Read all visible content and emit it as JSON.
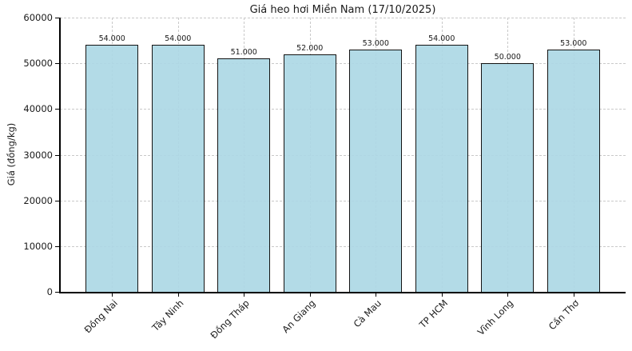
{
  "chart_data": {
    "type": "bar",
    "title": "Giá heo hơi Miền Nam (17/10/2025)",
    "xlabel": "",
    "ylabel": "Giá (đồng/kg)",
    "categories": [
      "Đồng Nai",
      "Tây Ninh",
      "Đồng Tháp",
      "An Giang",
      "Cà Mau",
      "TP HCM",
      "Vĩnh Long",
      "Cần Thơ"
    ],
    "values": [
      54000,
      54000,
      51000,
      52000,
      53000,
      54000,
      50000,
      53000
    ],
    "value_labels": [
      "54.000",
      "54.000",
      "51.000",
      "52.000",
      "53.000",
      "54.000",
      "50.000",
      "53.000"
    ],
    "ylim": [
      0,
      60000
    ],
    "yticks": [
      0,
      10000,
      20000,
      30000,
      40000,
      50000,
      60000
    ],
    "ytick_labels": [
      "0",
      "10000",
      "20000",
      "30000",
      "40000",
      "50000",
      "60000"
    ],
    "grid": true,
    "grid_style": "dashed",
    "legend_position": "none",
    "colors": {
      "bar_fill": "#ADD8E6",
      "bar_edge": "#000000",
      "grid": "#c9c9c9",
      "text": "#1a1a1a",
      "background": "#ffffff"
    }
  }
}
